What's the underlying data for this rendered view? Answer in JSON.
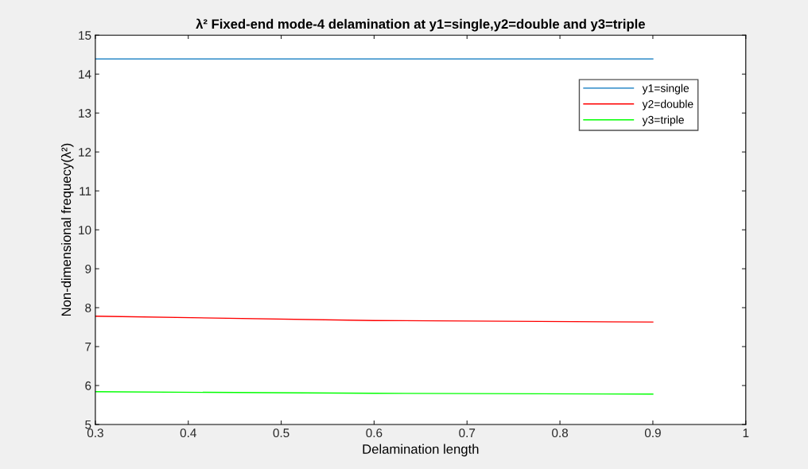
{
  "chart_data": {
    "type": "line",
    "title": "λ² Fixed-end mode-4 delamination at y1=single,y2=double and y3=triple",
    "xlabel": "Delamination length",
    "ylabel": "Non-dimensional frequecy(λ²)",
    "x": [
      0.3,
      0.6,
      0.9
    ],
    "series": [
      {
        "name": "y1=single",
        "color": "#0072bd",
        "values": [
          14.39,
          14.39,
          14.39
        ]
      },
      {
        "name": "y2=double",
        "color": "#ff0000",
        "values": [
          7.78,
          7.67,
          7.63
        ]
      },
      {
        "name": "y3=triple",
        "color": "#00ff00",
        "values": [
          5.84,
          5.8,
          5.78
        ]
      }
    ],
    "xlim": [
      0.3,
      1
    ],
    "xticks": [
      0.3,
      0.4,
      0.5,
      0.6,
      0.7,
      0.8,
      0.9,
      1
    ],
    "ylim": [
      5,
      15
    ],
    "yticks": [
      5,
      6,
      7,
      8,
      9,
      10,
      11,
      12,
      13,
      14,
      15
    ],
    "grid": false,
    "legend": "top right"
  }
}
